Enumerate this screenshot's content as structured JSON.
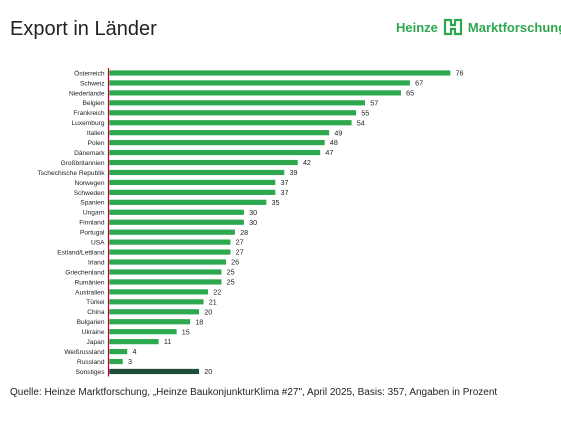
{
  "header": {
    "title": "Export in Länder",
    "brand_left": "Heinze",
    "brand_right": "Marktforschung"
  },
  "colors": {
    "bar": "#2ea84f",
    "bar_last": "#1e4d3a",
    "axis": "#b8002e"
  },
  "chart_data": {
    "type": "bar",
    "orientation": "horizontal",
    "categories": [
      "Österreich",
      "Schweiz",
      "Niederlande",
      "Belgien",
      "Frankreich",
      "Luxemburg",
      "Italien",
      "Polen",
      "Dänemark",
      "Großbritannien",
      "Tschechische Republik",
      "Norwegen",
      "Schweden",
      "Spanien",
      "Ungarn",
      "Finnland",
      "Portugal",
      "USA",
      "Estland/Lettland",
      "Irland",
      "Griechenland",
      "Rumänien",
      "Australien",
      "Türkei",
      "China",
      "Bulgarien",
      "Ukraine",
      "Japan",
      "Weißrussland",
      "Russland",
      "Sonstiges"
    ],
    "values": [
      76,
      67,
      65,
      57,
      55,
      54,
      49,
      48,
      47,
      42,
      39,
      37,
      37,
      35,
      30,
      30,
      28,
      27,
      27,
      26,
      25,
      25,
      22,
      21,
      20,
      18,
      15,
      11,
      4,
      3,
      20
    ],
    "xlim": [
      0,
      76
    ],
    "grid": false,
    "legend": "none",
    "title": "",
    "xlabel": "",
    "ylabel": ""
  },
  "footer": {
    "source": "Quelle: Heinze Marktforschung, „Heinze BaukonjunkturKlima #27\", April 2025, Basis: 357, Angaben in Prozent"
  }
}
